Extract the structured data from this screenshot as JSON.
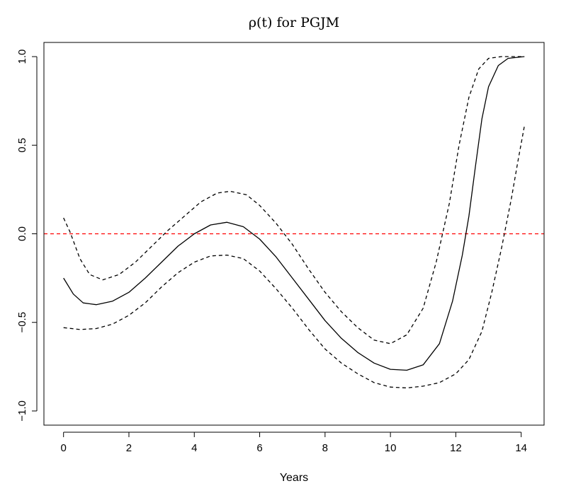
{
  "chart_data": {
    "type": "line",
    "title": "ρ(t) for PGJM",
    "xlabel": "Years",
    "ylabel": "",
    "xlim": [
      -0.6,
      14.7
    ],
    "ylim": [
      -1.08,
      1.08
    ],
    "x_ticks": [
      0,
      2,
      4,
      6,
      8,
      10,
      12,
      14
    ],
    "y_ticks": [
      -1.0,
      -0.5,
      0.0,
      0.5,
      1.0
    ],
    "x_tick_labels": [
      "0",
      "2",
      "4",
      "6",
      "8",
      "10",
      "12",
      "14"
    ],
    "y_tick_labels": [
      "−1.0",
      "−0.5",
      "0.0",
      "0.5",
      "1.0"
    ],
    "grid": false,
    "reference_line": {
      "y": 0.0,
      "color": "#ff0000",
      "style": "dashed"
    },
    "series": [
      {
        "style": "solid",
        "color": "#000000",
        "points": [
          [
            0.0,
            -0.25
          ],
          [
            0.3,
            -0.34
          ],
          [
            0.6,
            -0.39
          ],
          [
            1.0,
            -0.4
          ],
          [
            1.5,
            -0.38
          ],
          [
            2.0,
            -0.33
          ],
          [
            2.5,
            -0.25
          ],
          [
            3.0,
            -0.16
          ],
          [
            3.5,
            -0.07
          ],
          [
            4.0,
            0.0
          ],
          [
            4.5,
            0.05
          ],
          [
            5.0,
            0.065
          ],
          [
            5.5,
            0.04
          ],
          [
            6.0,
            -0.03
          ],
          [
            6.5,
            -0.13
          ],
          [
            7.0,
            -0.25
          ],
          [
            7.5,
            -0.37
          ],
          [
            8.0,
            -0.49
          ],
          [
            8.5,
            -0.59
          ],
          [
            9.0,
            -0.67
          ],
          [
            9.5,
            -0.73
          ],
          [
            10.0,
            -0.765
          ],
          [
            10.5,
            -0.77
          ],
          [
            11.0,
            -0.74
          ],
          [
            11.5,
            -0.62
          ],
          [
            11.9,
            -0.38
          ],
          [
            12.2,
            -0.12
          ],
          [
            12.4,
            0.1
          ],
          [
            12.6,
            0.38
          ],
          [
            12.8,
            0.65
          ],
          [
            13.0,
            0.83
          ],
          [
            13.3,
            0.95
          ],
          [
            13.6,
            0.99
          ],
          [
            14.1,
            1.0
          ]
        ]
      },
      {
        "style": "dashed",
        "color": "#000000",
        "points": [
          [
            0.0,
            0.09
          ],
          [
            0.2,
            0.01
          ],
          [
            0.5,
            -0.14
          ],
          [
            0.8,
            -0.23
          ],
          [
            1.2,
            -0.26
          ],
          [
            1.7,
            -0.23
          ],
          [
            2.2,
            -0.16
          ],
          [
            2.7,
            -0.07
          ],
          [
            3.2,
            0.02
          ],
          [
            3.7,
            0.1
          ],
          [
            4.2,
            0.18
          ],
          [
            4.7,
            0.23
          ],
          [
            5.1,
            0.24
          ],
          [
            5.6,
            0.22
          ],
          [
            6.0,
            0.16
          ],
          [
            6.5,
            0.06
          ],
          [
            7.0,
            -0.06
          ],
          [
            7.5,
            -0.2
          ],
          [
            8.0,
            -0.33
          ],
          [
            8.5,
            -0.44
          ],
          [
            9.0,
            -0.53
          ],
          [
            9.5,
            -0.6
          ],
          [
            10.0,
            -0.62
          ],
          [
            10.5,
            -0.57
          ],
          [
            11.0,
            -0.42
          ],
          [
            11.4,
            -0.16
          ],
          [
            11.8,
            0.17
          ],
          [
            12.1,
            0.5
          ],
          [
            12.4,
            0.77
          ],
          [
            12.7,
            0.93
          ],
          [
            13.0,
            0.99
          ],
          [
            13.4,
            1.0
          ],
          [
            14.0,
            1.0
          ]
        ]
      },
      {
        "style": "dashed",
        "color": "#000000",
        "points": [
          [
            0.0,
            -0.53
          ],
          [
            0.5,
            -0.54
          ],
          [
            1.0,
            -0.535
          ],
          [
            1.5,
            -0.51
          ],
          [
            2.0,
            -0.46
          ],
          [
            2.5,
            -0.39
          ],
          [
            3.0,
            -0.3
          ],
          [
            3.5,
            -0.22
          ],
          [
            4.0,
            -0.16
          ],
          [
            4.5,
            -0.125
          ],
          [
            5.0,
            -0.12
          ],
          [
            5.5,
            -0.14
          ],
          [
            6.0,
            -0.21
          ],
          [
            6.5,
            -0.31
          ],
          [
            7.0,
            -0.42
          ],
          [
            7.5,
            -0.54
          ],
          [
            8.0,
            -0.65
          ],
          [
            8.5,
            -0.73
          ],
          [
            9.0,
            -0.79
          ],
          [
            9.5,
            -0.84
          ],
          [
            10.0,
            -0.865
          ],
          [
            10.5,
            -0.87
          ],
          [
            11.0,
            -0.86
          ],
          [
            11.5,
            -0.84
          ],
          [
            12.0,
            -0.79
          ],
          [
            12.4,
            -0.71
          ],
          [
            12.8,
            -0.55
          ],
          [
            13.1,
            -0.33
          ],
          [
            13.4,
            -0.08
          ],
          [
            13.7,
            0.2
          ],
          [
            13.9,
            0.41
          ],
          [
            14.1,
            0.61
          ]
        ]
      }
    ]
  }
}
